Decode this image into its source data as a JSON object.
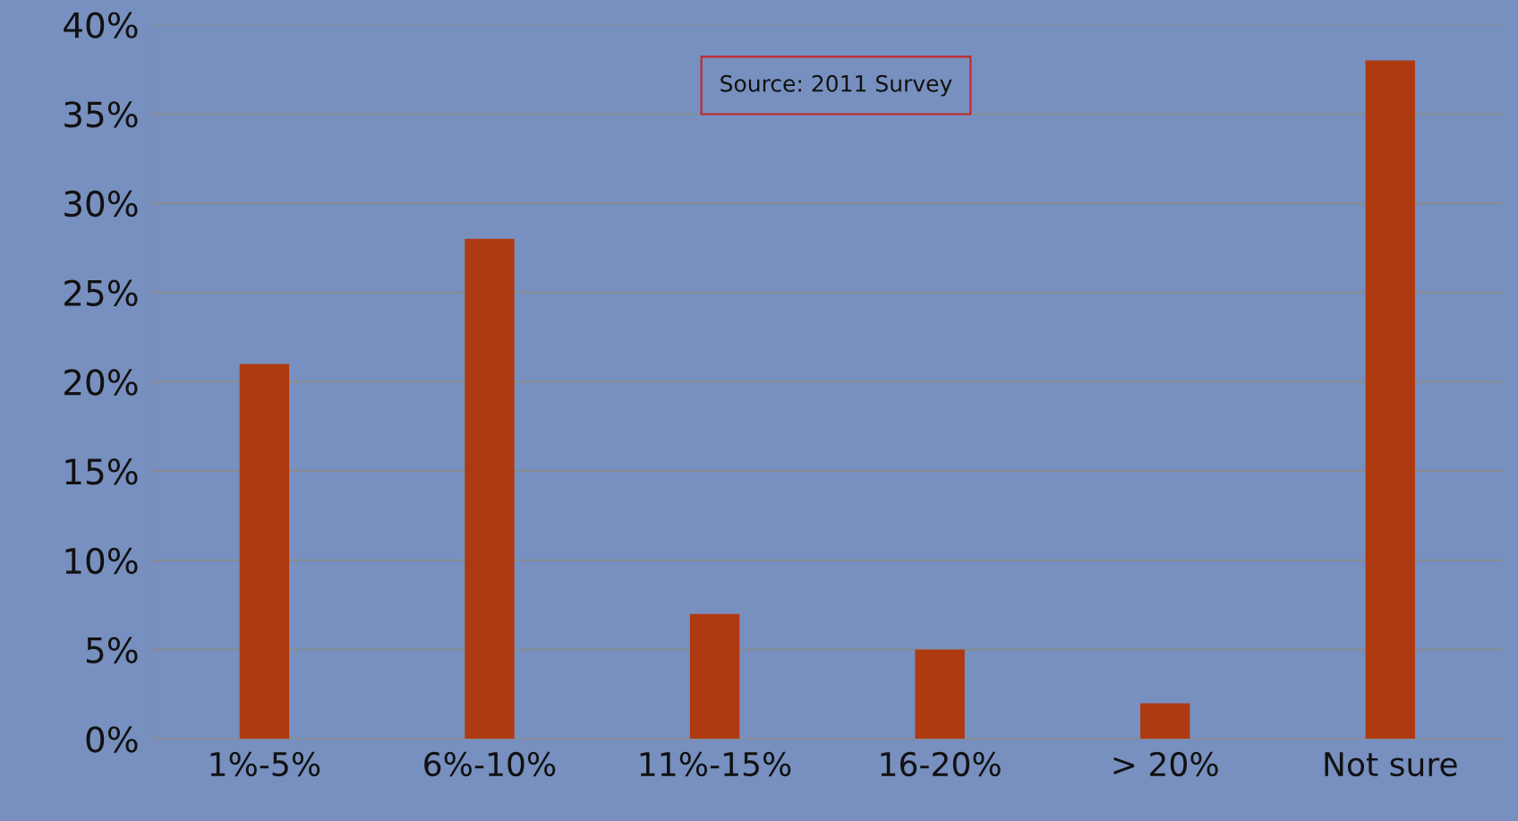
{
  "chart_data": {
    "type": "bar",
    "categories": [
      "1%-5%",
      "6%-10%",
      "11%-15%",
      "16-20%",
      "> 20%",
      "Not sure"
    ],
    "values": [
      21,
      28,
      7,
      5,
      2,
      38
    ],
    "color": "#ae3a12",
    "ylim": [
      0,
      40
    ],
    "yticks": [
      {
        "value": 0,
        "label": "0%"
      },
      {
        "value": 5,
        "label": "5%"
      },
      {
        "value": 10,
        "label": "10%"
      },
      {
        "value": 15,
        "label": "15%"
      },
      {
        "value": 20,
        "label": "20%"
      },
      {
        "value": 25,
        "label": "25%"
      },
      {
        "value": 30,
        "label": "30%"
      },
      {
        "value": 35,
        "label": "35%"
      },
      {
        "value": 40,
        "label": "40%"
      }
    ],
    "grid": "y",
    "legend": false,
    "annotations": [
      "Source: 2011 Survey"
    ]
  }
}
